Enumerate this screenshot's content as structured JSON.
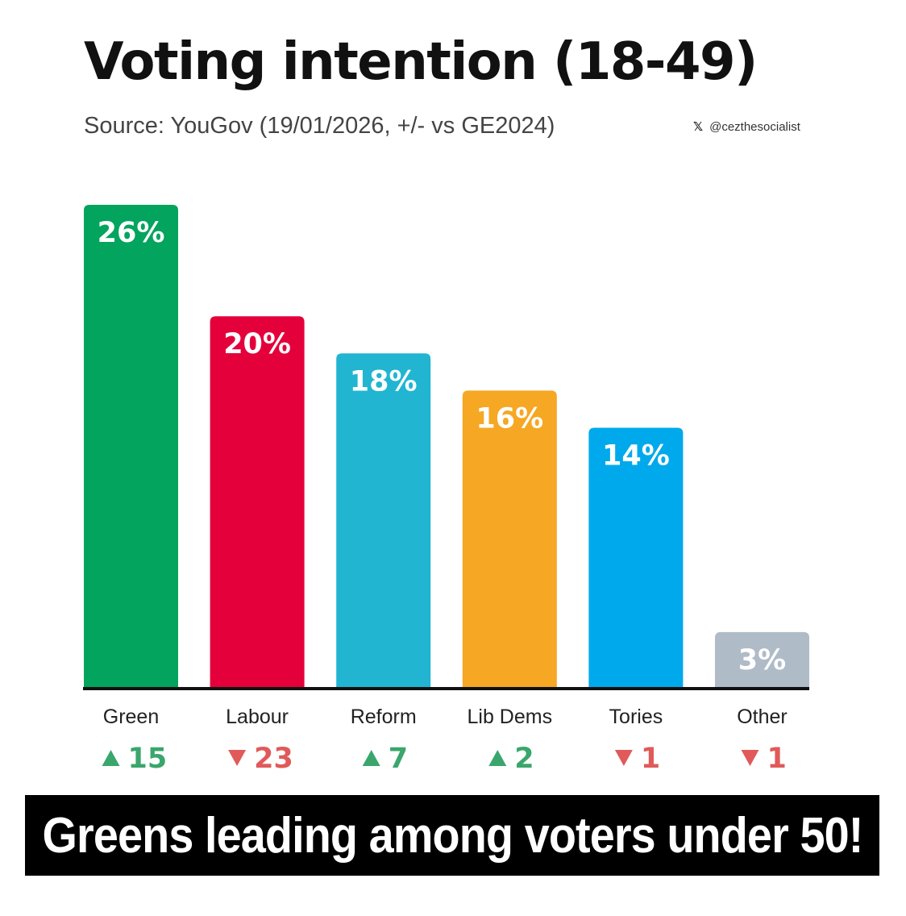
{
  "title": "Voting intention (18-49)",
  "subtitle": "Source: YouGov (19/01/2026, +/- vs GE2024)",
  "handle": {
    "icon": "x-logo-icon",
    "text": "@cezthesocialist"
  },
  "chart_data": {
    "type": "bar",
    "title": "Voting intention (18-49)",
    "subtitle": "Source: YouGov (19/01/2026, +/- vs GE2024)",
    "categories": [
      "Green",
      "Labour",
      "Reform",
      "Lib Dems",
      "Tories",
      "Other"
    ],
    "values": [
      26,
      20,
      18,
      16,
      14,
      3
    ],
    "value_labels": [
      "26%",
      "20%",
      "18%",
      "16%",
      "14%",
      "3%"
    ],
    "changes": [
      15,
      -23,
      7,
      2,
      -1,
      -1
    ],
    "change_labels": [
      "15",
      "23",
      "7",
      "2",
      "1",
      "1"
    ],
    "colors": [
      "#03a45e",
      "#e4003b",
      "#21b5d2",
      "#f6a723",
      "#00a9ec",
      "#b0bbc8"
    ],
    "up_color": "#3aa66b",
    "down_color": "#e05a5a",
    "ylim": [
      0,
      26
    ],
    "grid": false,
    "xlabel": "",
    "ylabel": ""
  },
  "banner": {
    "text": "Greens leading among voters under 50!"
  }
}
